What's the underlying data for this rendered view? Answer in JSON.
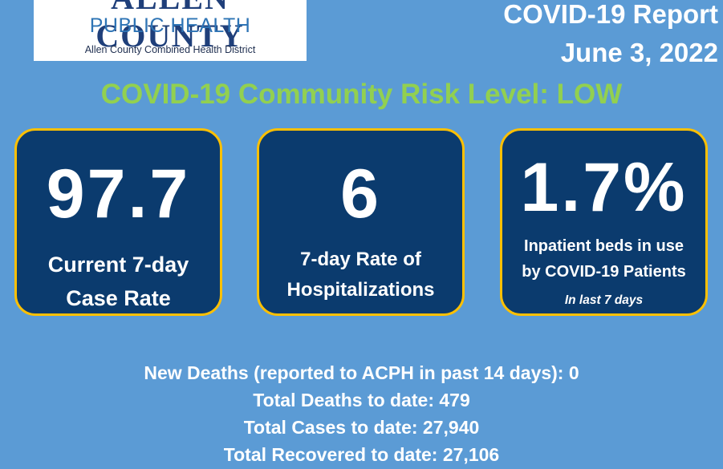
{
  "logo": {
    "county": "ALLEN COUNTY",
    "public_health": "PUBLIC HEALTH",
    "district": "Allen County Combined Health District"
  },
  "header": {
    "report_title": "COVID-19 Report",
    "report_date": "June 3, 2022"
  },
  "risk_level": "COVID-19 Community Risk Level: LOW",
  "cards": [
    {
      "value": "97.7",
      "label_line1": "Current 7-day",
      "label_line2": "Case Rate"
    },
    {
      "value": "6",
      "label_line1": "7-day Rate of",
      "label_line2": "Hospitalizations"
    },
    {
      "value": "1.7%",
      "label_line1": "Inpatient beds in use",
      "label_line2": "by COVID-19 Patients",
      "note": "In last  7 days"
    }
  ],
  "stats": {
    "new_deaths": "New Deaths (reported to ACPH in past 14 days): 0",
    "total_deaths": "Total Deaths to date: 479",
    "total_cases": "Total Cases to date: 27,940",
    "total_recovered": "Total Recovered to date: 27,106"
  },
  "colors": {
    "background": "#5b9bd5",
    "card_fill": "#0b3b6e",
    "card_border": "#ffc000",
    "risk_text": "#92d050"
  }
}
